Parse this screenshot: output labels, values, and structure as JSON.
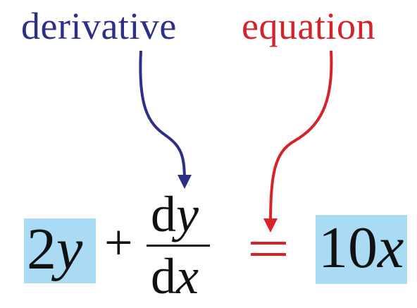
{
  "labels": {
    "derivative": "derivative",
    "equation": "equation"
  },
  "equation": {
    "left_coeff": "2",
    "left_var": "y",
    "plus": "+",
    "frac_num_d": "d",
    "frac_num_var": "y",
    "frac_den_d": "d",
    "frac_den_var": "x",
    "right_coeff": "10",
    "right_var": "x"
  },
  "colors": {
    "derivative": "#2e2f86",
    "equation": "#d6232a",
    "highlight": "#a9dcf4",
    "math": "#111111"
  }
}
